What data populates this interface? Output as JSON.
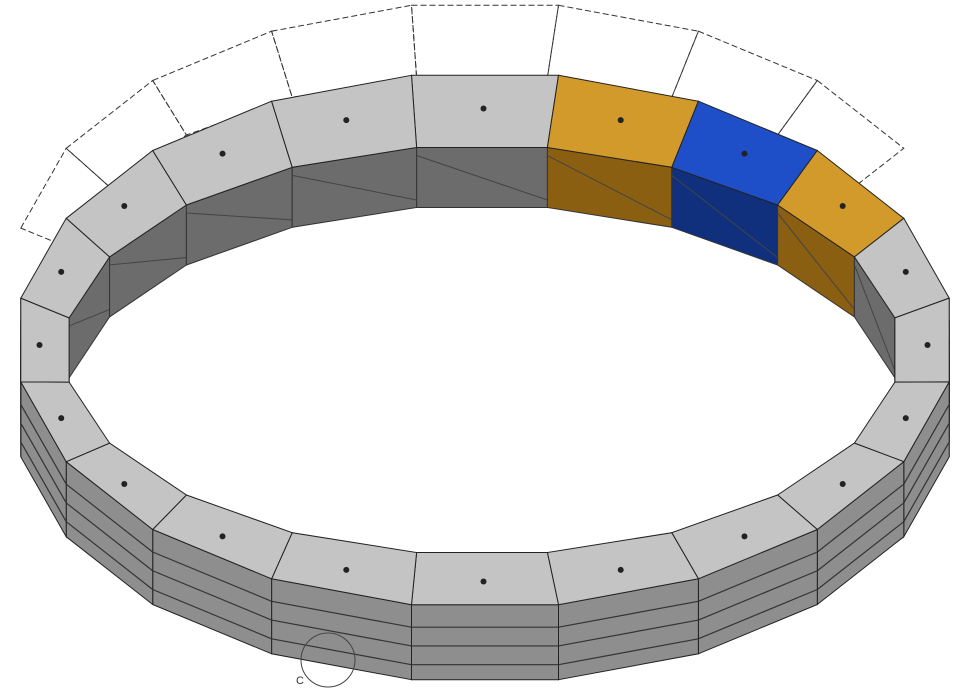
{
  "detail_label": "C"
}
